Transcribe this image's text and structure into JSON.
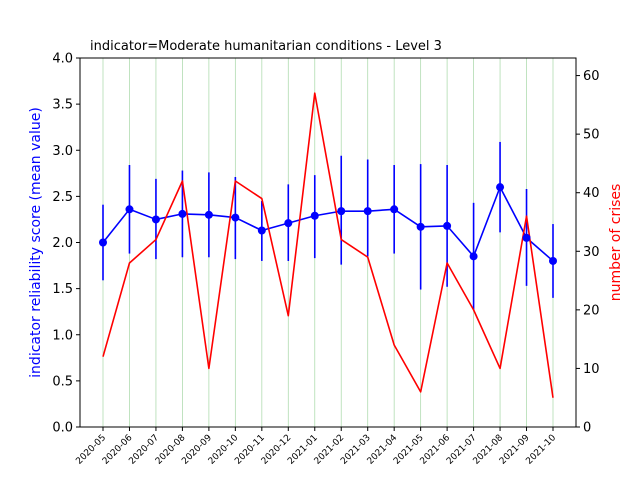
{
  "chart_data": {
    "type": "line",
    "title": "indicator=Moderate humanitarian conditions - Level 3",
    "xlabel": "",
    "ylabel": "indicator reliability score (mean value)",
    "y2label": "number of crises",
    "categories": [
      "2020-05",
      "2020-06",
      "2020-07",
      "2020-08",
      "2020-09",
      "2020-10",
      "2020-11",
      "2020-12",
      "2021-01",
      "2021-02",
      "2021-03",
      "2021-04",
      "2021-05",
      "2021-06",
      "2021-07",
      "2021-08",
      "2021-09",
      "2021-10"
    ],
    "ylim": [
      0,
      4.0
    ],
    "y2lim": [
      0,
      63
    ],
    "yticks": [
      "0.0",
      "0.5",
      "1.0",
      "1.5",
      "2.0",
      "2.5",
      "3.0",
      "3.5",
      "4.0"
    ],
    "y2ticks": [
      "0",
      "10",
      "20",
      "30",
      "40",
      "50",
      "60"
    ],
    "grid": "x-only",
    "series": [
      {
        "axis": "left",
        "color": "#0000ff",
        "values": [
          2.0,
          2.36,
          2.25,
          2.31,
          2.3,
          2.27,
          2.13,
          2.21,
          2.29,
          2.34,
          2.34,
          2.36,
          2.17,
          2.18,
          1.85,
          2.6,
          2.05,
          1.8
        ],
        "err_low": [
          1.59,
          1.88,
          1.82,
          1.84,
          1.84,
          1.82,
          1.8,
          1.8,
          1.83,
          1.76,
          1.85,
          1.88,
          1.49,
          1.52,
          1.27,
          2.11,
          1.53,
          1.4
        ],
        "err_high": [
          2.41,
          2.84,
          2.69,
          2.78,
          2.76,
          2.71,
          2.45,
          2.63,
          2.73,
          2.94,
          2.9,
          2.84,
          2.85,
          2.84,
          2.43,
          3.09,
          2.58,
          2.2
        ]
      },
      {
        "axis": "right",
        "color": "#ff0000",
        "values": [
          12,
          28,
          32,
          42,
          10,
          42,
          39,
          19,
          57,
          32,
          29,
          14,
          6,
          28,
          20,
          10,
          36,
          5
        ]
      }
    ]
  }
}
